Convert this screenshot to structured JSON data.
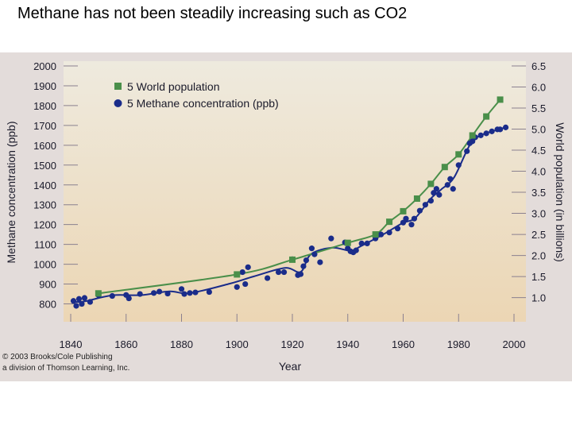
{
  "slide": {
    "title": "Methane has not been steadily increasing such as CO2"
  },
  "figure": {
    "copyright_line1": "© 2003 Brooks/Cole Publishing",
    "copyright_line2": "a division of Thomson Learning, Inc."
  },
  "colors": {
    "population": "#4a8f4a",
    "methane": "#1a2c8a",
    "plot_top": "#eeeade",
    "plot_bottom": "#ecd6b4",
    "figure_bg": "#e3dcda"
  },
  "chart_data": {
    "type": "line",
    "xlabel": "Year",
    "ylabel": "Methane concentration (ppb)",
    "y2label": "World population (in billions)",
    "xlim": [
      1840,
      2000
    ],
    "ylim": [
      750,
      2000
    ],
    "y2lim": [
      0.615,
      6.5
    ],
    "x_ticks": [
      1840,
      1860,
      1880,
      1900,
      1920,
      1940,
      1960,
      1980,
      2000
    ],
    "y_ticks": [
      800,
      900,
      1000,
      1100,
      1200,
      1300,
      1400,
      1500,
      1600,
      1700,
      1800,
      1900,
      2000
    ],
    "y2_ticks": [
      "1.0",
      "1.5",
      "2.0",
      "2.5",
      "3.0",
      "3.5",
      "4.0",
      "4.5",
      "5.0",
      "5.5",
      "6.0",
      "6.5"
    ],
    "grid": false,
    "legend_position": "top-left",
    "series": [
      {
        "name": "5 World population",
        "axis": "right",
        "marker": "square",
        "x": [
          1850,
          1900,
          1920,
          1940,
          1950,
          1955,
          1960,
          1965,
          1970,
          1975,
          1980,
          1985,
          1990,
          1995
        ],
        "y": [
          1.1,
          1.55,
          1.9,
          2.3,
          2.5,
          2.8,
          3.05,
          3.35,
          3.7,
          4.1,
          4.4,
          4.85,
          5.3,
          5.7
        ]
      },
      {
        "name": "5 Methane concentration (ppb)",
        "axis": "left",
        "marker": "circle",
        "x": [
          1841,
          1842,
          1843,
          1844,
          1845,
          1847,
          1850,
          1855,
          1860,
          1861,
          1865,
          1870,
          1872,
          1875,
          1880,
          1881,
          1883,
          1885,
          1890,
          1900,
          1902,
          1903,
          1904,
          1911,
          1915,
          1917,
          1920,
          1922,
          1923,
          1924,
          1925,
          1927,
          1928,
          1930,
          1934,
          1939,
          1940,
          1941,
          1942,
          1943,
          1945,
          1947,
          1950,
          1952,
          1955,
          1958,
          1960,
          1961,
          1963,
          1964,
          1966,
          1968,
          1970,
          1971,
          1972,
          1973,
          1976,
          1977,
          1978,
          1980,
          1983,
          1984,
          1985,
          1986,
          1988,
          1990,
          1992,
          1994,
          1995,
          1997
        ],
        "y": [
          815,
          790,
          825,
          800,
          830,
          810,
          845,
          840,
          845,
          828,
          850,
          855,
          862,
          852,
          875,
          850,
          855,
          858,
          860,
          885,
          960,
          900,
          985,
          930,
          960,
          960,
          1025,
          945,
          950,
          990,
          1020,
          1080,
          1050,
          1010,
          1130,
          1110,
          1080,
          1065,
          1060,
          1070,
          1105,
          1105,
          1130,
          1150,
          1160,
          1180,
          1210,
          1230,
          1200,
          1230,
          1270,
          1300,
          1320,
          1360,
          1380,
          1350,
          1400,
          1430,
          1380,
          1500,
          1570,
          1610,
          1620,
          1640,
          1650,
          1660,
          1670,
          1680,
          1680,
          1690
        ]
      }
    ]
  }
}
